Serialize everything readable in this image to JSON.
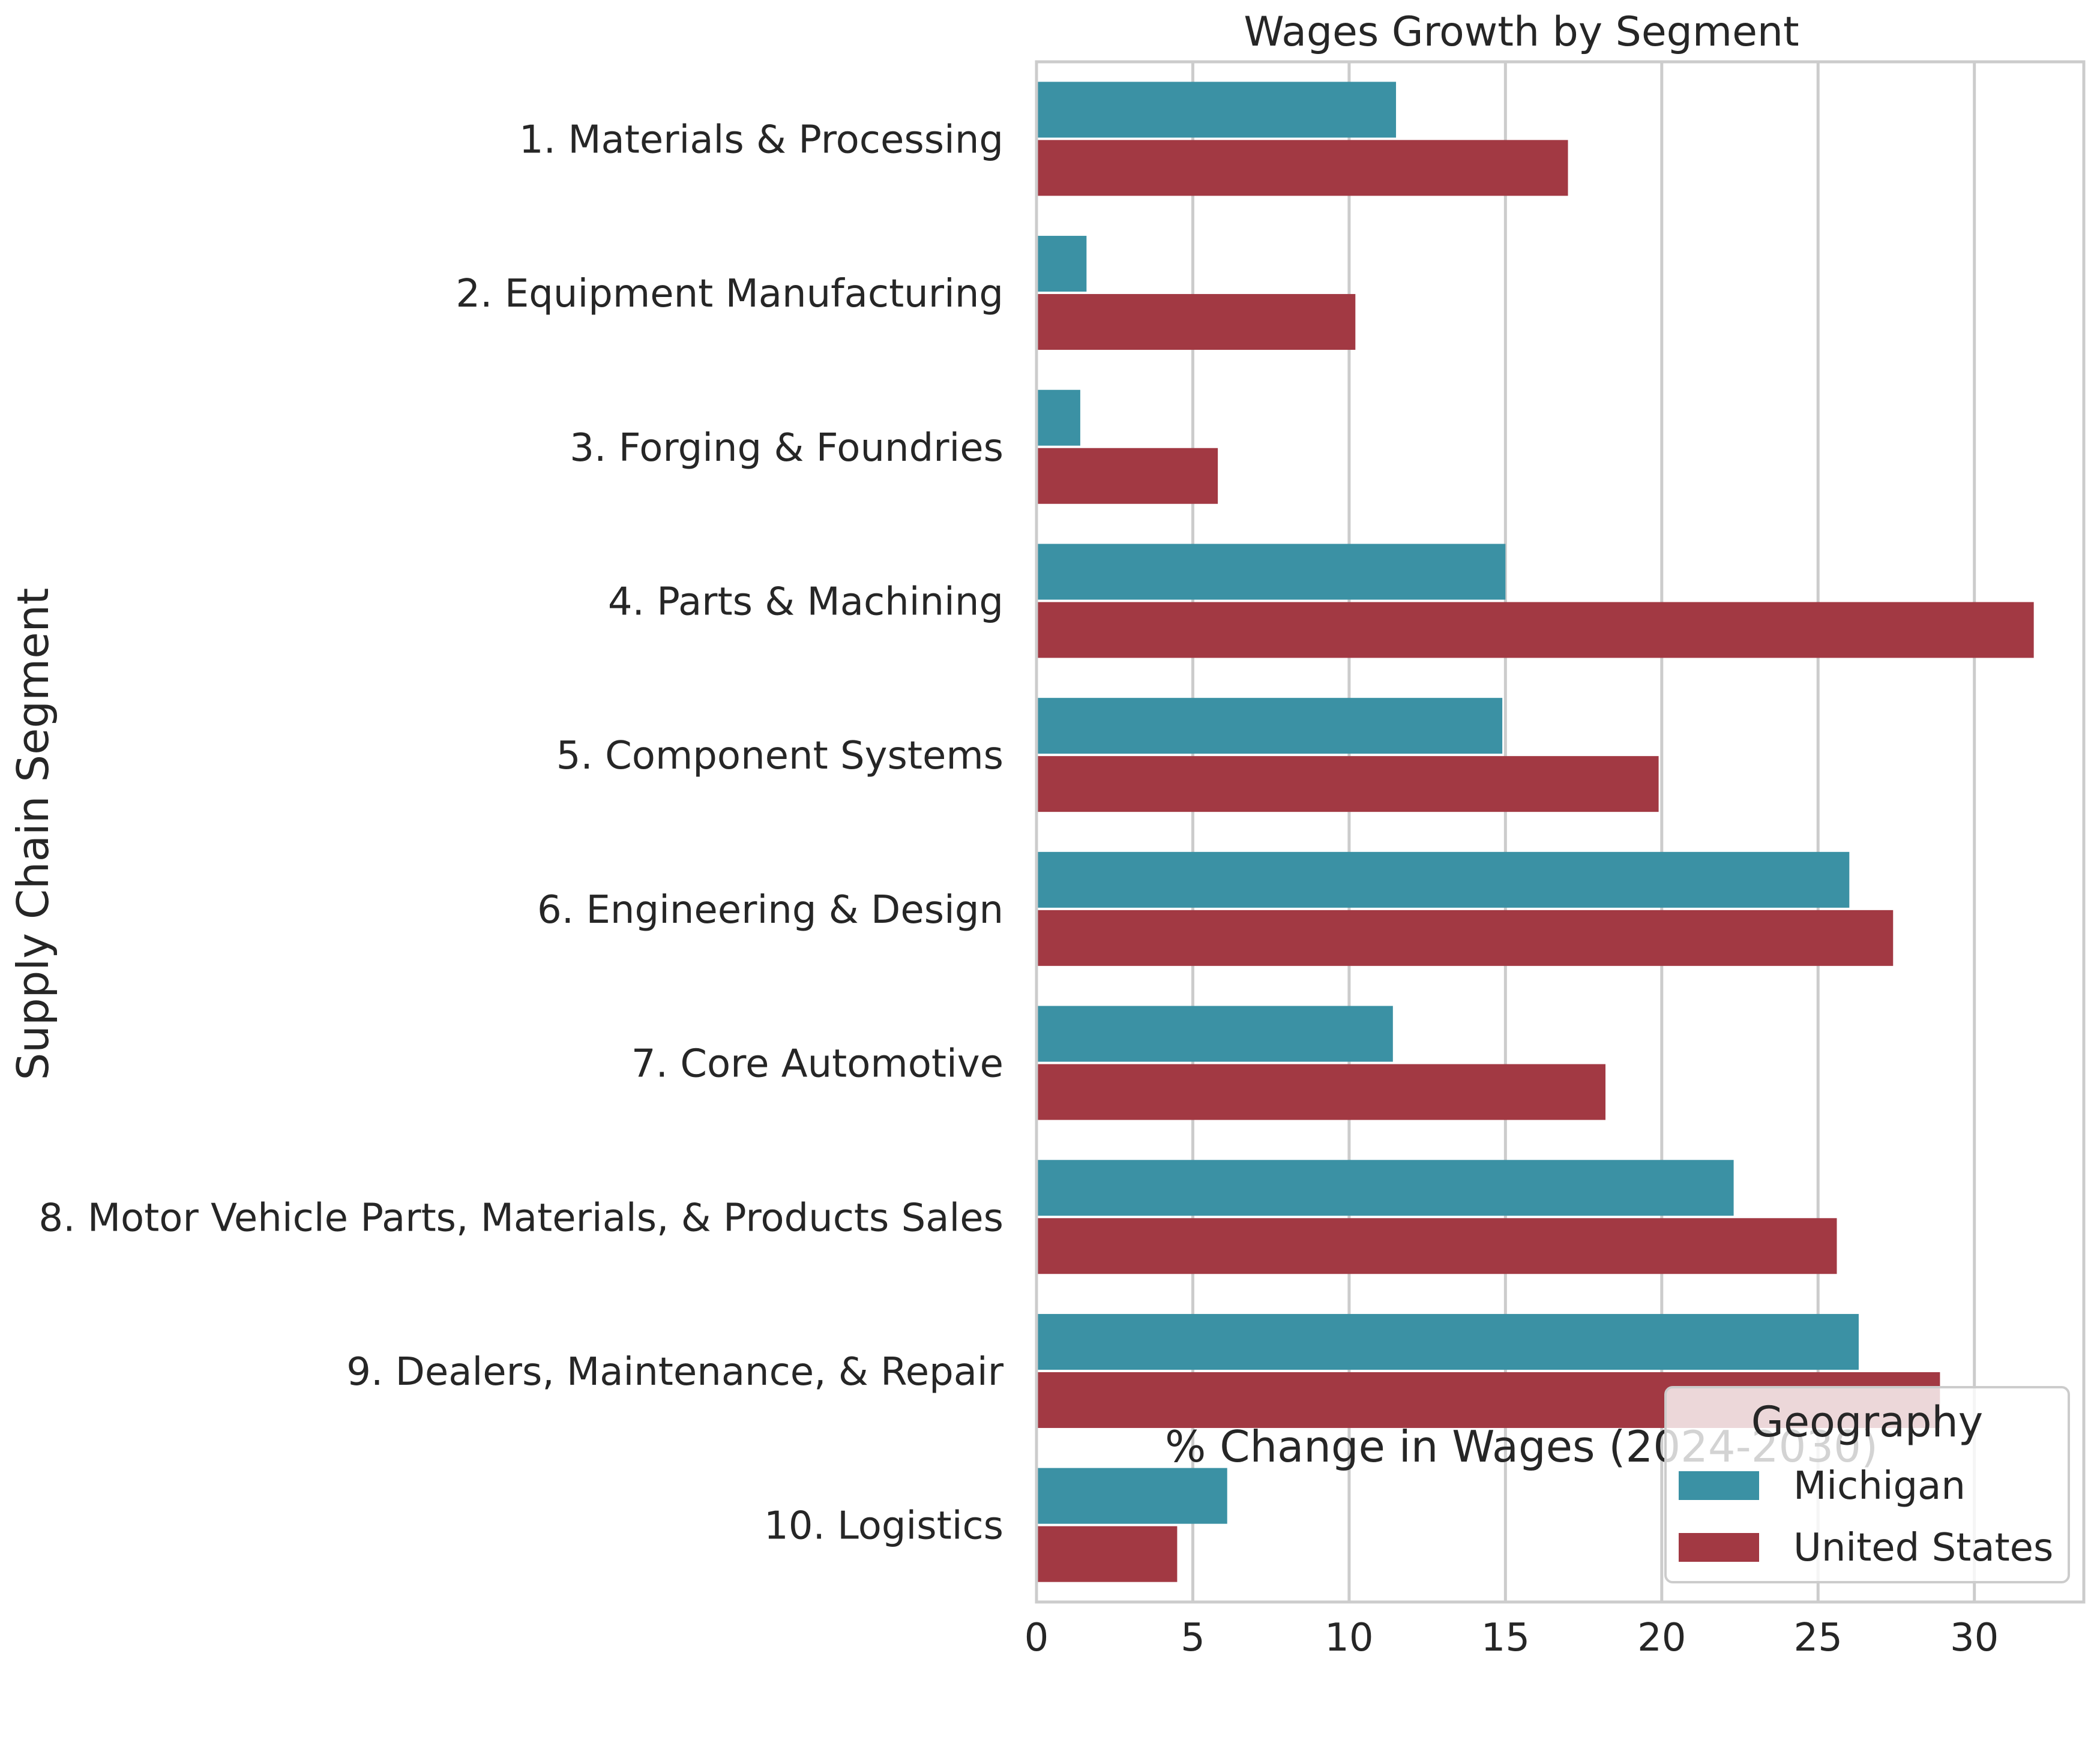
{
  "chart_data": {
    "type": "bar",
    "orientation": "horizontal",
    "title": "Wages Growth by Segment",
    "xlabel": "% Change in Wages (2024-2030)",
    "ylabel": "Supply Chain Segment",
    "xlim": [
      0,
      33.5
    ],
    "xticks": [
      0,
      5,
      10,
      15,
      20,
      25,
      30
    ],
    "grid": true,
    "legend": {
      "title": "Geography",
      "placement": "bottom-right"
    },
    "categories": [
      "1. Materials & Processing",
      "2. Equipment Manufacturing",
      "3. Forging & Foundries",
      "4. Parts & Machining",
      "5. Component Systems",
      "6. Engineering & Design",
      "7. Core Automotive",
      "8. Motor Vehicle Parts, Materials, & Products Sales",
      "9. Dealers, Maintenance, & Repair",
      "10. Logistics"
    ],
    "series": [
      {
        "name": "Michigan",
        "color": "#3b91a4",
        "values": [
          11.5,
          1.6,
          1.4,
          15.0,
          14.9,
          26.0,
          11.4,
          22.3,
          26.3,
          6.1
        ]
      },
      {
        "name": "United States",
        "color": "#a23943",
        "values": [
          17.0,
          10.2,
          5.8,
          31.9,
          19.9,
          27.4,
          18.2,
          25.6,
          28.9,
          4.5
        ]
      }
    ]
  }
}
